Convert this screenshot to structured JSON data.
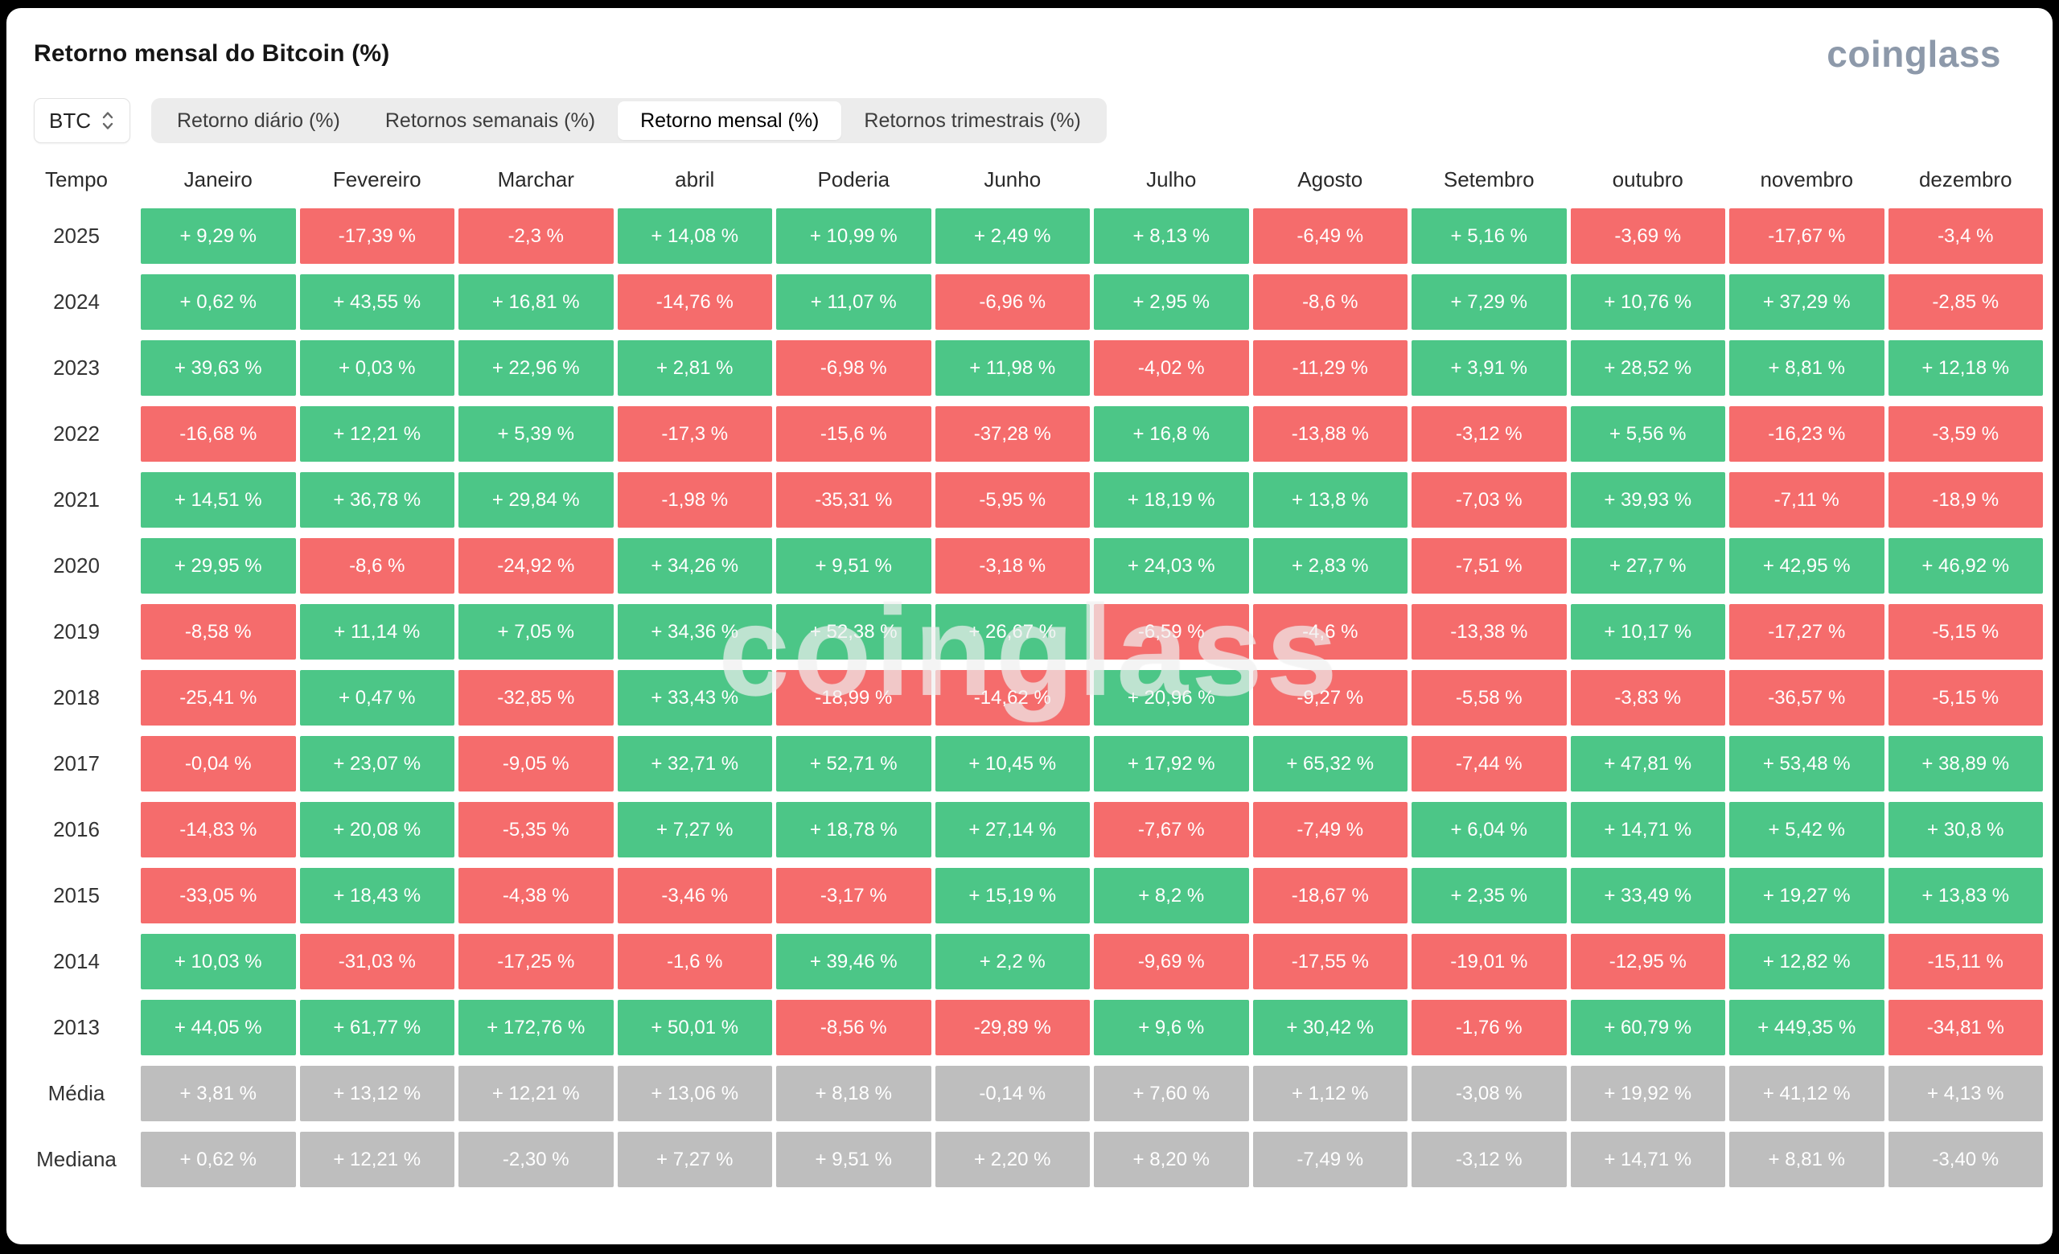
{
  "page": {
    "title": "Retorno mensal do Bitcoin (%)",
    "logo": "coinglass",
    "watermark": "coinglass",
    "background_color": "#000000"
  },
  "controls": {
    "coin_selector": {
      "value": "BTC"
    },
    "tabs": [
      {
        "label": "Retorno diário (%)",
        "active": false
      },
      {
        "label": "Retornos semanais (%)",
        "active": false
      },
      {
        "label": "Retorno mensal (%)",
        "active": true
      },
      {
        "label": "Retornos trimestrais (%)",
        "active": false
      }
    ]
  },
  "chart_data": {
    "type": "heatmap",
    "title": "Retorno mensal do Bitcoin (%)",
    "row_header": "Tempo",
    "columns": [
      "Janeiro",
      "Fevereiro",
      "Marchar",
      "abril",
      "Poderia",
      "Junho",
      "Julho",
      "Agosto",
      "Setembro",
      "outubro",
      "novembro",
      "dezembro"
    ],
    "rows": [
      {
        "label": "2025",
        "type": "year",
        "values": [
          "+ 9,29 %",
          "-17,39 %",
          "-2,3 %",
          "+ 14,08 %",
          "+ 10,99 %",
          "+ 2,49 %",
          "+ 8,13 %",
          "-6,49 %",
          "+ 5,16 %",
          "-3,69 %",
          "-17,67 %",
          "-3,4 %"
        ]
      },
      {
        "label": "2024",
        "type": "year",
        "values": [
          "+ 0,62 %",
          "+ 43,55 %",
          "+ 16,81 %",
          "-14,76 %",
          "+ 11,07 %",
          "-6,96 %",
          "+ 2,95 %",
          "-8,6 %",
          "+ 7,29 %",
          "+ 10,76 %",
          "+ 37,29 %",
          "-2,85 %"
        ]
      },
      {
        "label": "2023",
        "type": "year",
        "values": [
          "+ 39,63 %",
          "+ 0,03 %",
          "+ 22,96 %",
          "+ 2,81 %",
          "-6,98 %",
          "+ 11,98 %",
          "-4,02 %",
          "-11,29 %",
          "+ 3,91 %",
          "+ 28,52 %",
          "+ 8,81 %",
          "+ 12,18 %"
        ]
      },
      {
        "label": "2022",
        "type": "year",
        "values": [
          "-16,68 %",
          "+ 12,21 %",
          "+ 5,39 %",
          "-17,3 %",
          "-15,6 %",
          "-37,28 %",
          "+ 16,8 %",
          "-13,88 %",
          "-3,12 %",
          "+ 5,56 %",
          "-16,23 %",
          "-3,59 %"
        ]
      },
      {
        "label": "2021",
        "type": "year",
        "values": [
          "+ 14,51 %",
          "+ 36,78 %",
          "+ 29,84 %",
          "-1,98 %",
          "-35,31 %",
          "-5,95 %",
          "+ 18,19 %",
          "+ 13,8 %",
          "-7,03 %",
          "+ 39,93 %",
          "-7,11 %",
          "-18,9 %"
        ]
      },
      {
        "label": "2020",
        "type": "year",
        "values": [
          "+ 29,95 %",
          "-8,6 %",
          "-24,92 %",
          "+ 34,26 %",
          "+ 9,51 %",
          "-3,18 %",
          "+ 24,03 %",
          "+ 2,83 %",
          "-7,51 %",
          "+ 27,7 %",
          "+ 42,95 %",
          "+ 46,92 %"
        ]
      },
      {
        "label": "2019",
        "type": "year",
        "values": [
          "-8,58 %",
          "+ 11,14 %",
          "+ 7,05 %",
          "+ 34,36 %",
          "+ 52,38 %",
          "+ 26,67 %",
          "-6,59 %",
          "-4,6 %",
          "-13,38 %",
          "+ 10,17 %",
          "-17,27 %",
          "-5,15 %"
        ]
      },
      {
        "label": "2018",
        "type": "year",
        "values": [
          "-25,41 %",
          "+ 0,47 %",
          "-32,85 %",
          "+ 33,43 %",
          "-18,99 %",
          "-14,62 %",
          "+ 20,96 %",
          "-9,27 %",
          "-5,58 %",
          "-3,83 %",
          "-36,57 %",
          "-5,15 %"
        ]
      },
      {
        "label": "2017",
        "type": "year",
        "values": [
          "-0,04 %",
          "+ 23,07 %",
          "-9,05 %",
          "+ 32,71 %",
          "+ 52,71 %",
          "+ 10,45 %",
          "+ 17,92 %",
          "+ 65,32 %",
          "-7,44 %",
          "+ 47,81 %",
          "+ 53,48 %",
          "+ 38,89 %"
        ]
      },
      {
        "label": "2016",
        "type": "year",
        "values": [
          "-14,83 %",
          "+ 20,08 %",
          "-5,35 %",
          "+ 7,27 %",
          "+ 18,78 %",
          "+ 27,14 %",
          "-7,67 %",
          "-7,49 %",
          "+ 6,04 %",
          "+ 14,71 %",
          "+ 5,42 %",
          "+ 30,8 %"
        ]
      },
      {
        "label": "2015",
        "type": "year",
        "values": [
          "-33,05 %",
          "+ 18,43 %",
          "-4,38 %",
          "-3,46 %",
          "-3,17 %",
          "+ 15,19 %",
          "+ 8,2 %",
          "-18,67 %",
          "+ 2,35 %",
          "+ 33,49 %",
          "+ 19,27 %",
          "+ 13,83 %"
        ]
      },
      {
        "label": "2014",
        "type": "year",
        "values": [
          "+ 10,03 %",
          "-31,03 %",
          "-17,25 %",
          "-1,6 %",
          "+ 39,46 %",
          "+ 2,2 %",
          "-9,69 %",
          "-17,55 %",
          "-19,01 %",
          "-12,95 %",
          "+ 12,82 %",
          "-15,11 %"
        ]
      },
      {
        "label": "2013",
        "type": "year",
        "values": [
          "+ 44,05 %",
          "+ 61,77 %",
          "+ 172,76 %",
          "+ 50,01 %",
          "-8,56 %",
          "-29,89 %",
          "+ 9,6 %",
          "+ 30,42 %",
          "-1,76 %",
          "+ 60,79 %",
          "+ 449,35 %",
          "-34,81 %"
        ]
      },
      {
        "label": "Média",
        "type": "summary",
        "values": [
          "+ 3,81 %",
          "+ 13,12 %",
          "+ 12,21 %",
          "+ 13,06 %",
          "+ 8,18 %",
          "-0,14 %",
          "+ 7,60 %",
          "+ 1,12 %",
          "-3,08 %",
          "+ 19,92 %",
          "+ 41,12 %",
          "+ 4,13 %"
        ]
      },
      {
        "label": "Mediana",
        "type": "summary",
        "values": [
          "+ 0,62 %",
          "+ 12,21 %",
          "-2,30 %",
          "+ 7,27 %",
          "+ 9,51 %",
          "+ 2,20 %",
          "+ 8,20 %",
          "-7,49 %",
          "-3,12 %",
          "+ 14,71 %",
          "+ 8,81 %",
          "-3,40 %"
        ]
      }
    ],
    "colors": {
      "positive": "#4CC687",
      "negative": "#F56C6C",
      "summary": "#BEBEBE",
      "cell_text": "#FFFFFF"
    }
  }
}
